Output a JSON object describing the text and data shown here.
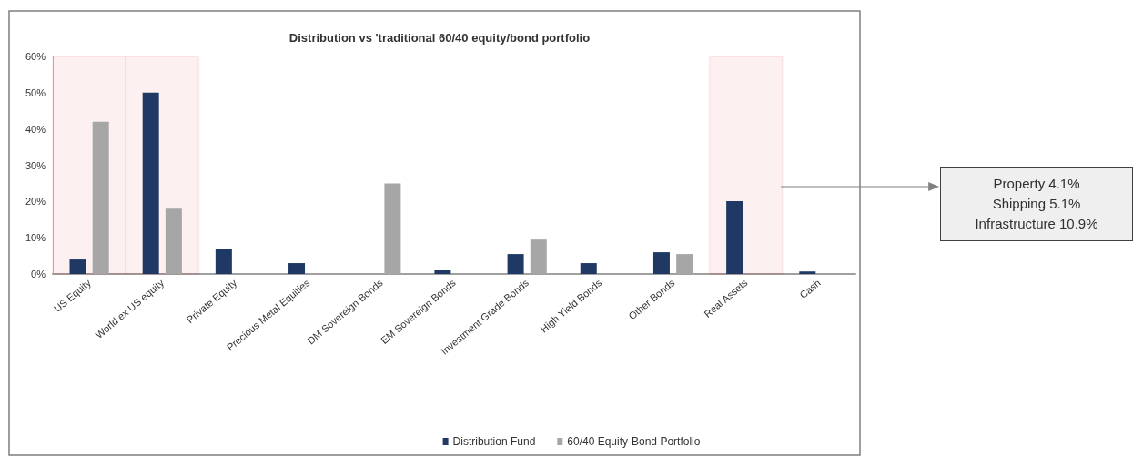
{
  "chart_data": {
    "type": "bar",
    "title": "Distribution vs 'traditional 60/40 equity/bond portfolio",
    "categories": [
      "US Equity",
      "World ex US equity",
      "Private Equity",
      "Precious Metal Equities",
      "DM Sovereign Bonds",
      "EM Sovereign Bonds",
      "Investment Grade Bonds",
      "High Yield Bonds",
      "Other Bonds",
      "Real Assets",
      "Cash"
    ],
    "series": [
      {
        "name": "Distribution Fund",
        "color": "#1f3864",
        "values": [
          4,
          50,
          7,
          3,
          0,
          1,
          5.5,
          3,
          6,
          20.1,
          0.7
        ]
      },
      {
        "name": "60/40 Equity-Bond Portfolio",
        "color": "#a6a6a6",
        "values": [
          42,
          18,
          0,
          0,
          25,
          0,
          9.5,
          0,
          5.5,
          0,
          0
        ]
      }
    ],
    "ylim": [
      0,
      60
    ],
    "yticks": [
      {
        "value": 0,
        "label": "0%"
      },
      {
        "value": 10,
        "label": "10%"
      },
      {
        "value": 20,
        "label": "20%"
      },
      {
        "value": 30,
        "label": "30%"
      },
      {
        "value": 40,
        "label": "40%"
      },
      {
        "value": 50,
        "label": "50%"
      },
      {
        "value": 60,
        "label": "60%"
      }
    ],
    "grid": false,
    "legend": "bottom",
    "bands": [
      {
        "axis": "x",
        "from": "US Equity",
        "to": "US Equity",
        "color": "#e00000"
      },
      {
        "axis": "x",
        "from": "World ex US equity",
        "to": "World ex US equity",
        "color": "#e00000"
      },
      {
        "axis": "x",
        "from": "Real Assets",
        "to": "Real Assets",
        "color": "#e00000"
      }
    ],
    "annotations": [
      "Property 4.1%",
      "Shipping 5.1%",
      "Infrastructure 10.9%"
    ]
  }
}
